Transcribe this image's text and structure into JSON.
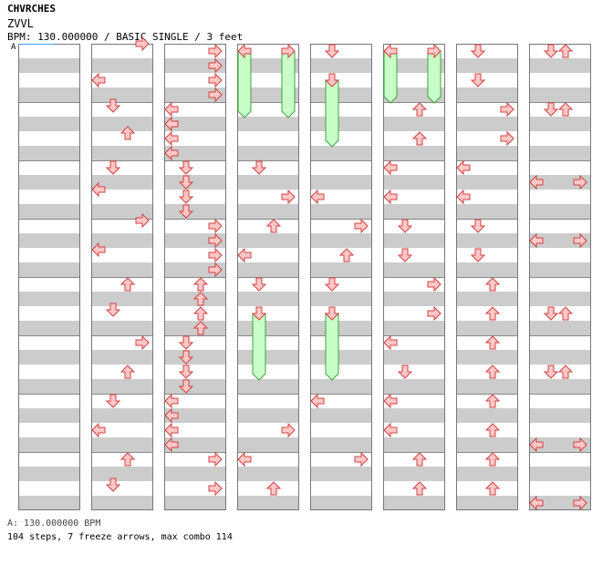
{
  "header": {
    "artist": "CHVRCHES",
    "title": "ZVVL",
    "meta": "BPM: 130.000000 / BASIC SINGLE / 3 feet"
  },
  "section_label": "A",
  "footer": {
    "bpm_line": "A: 130.000000 BPM",
    "stats_line": "104 steps, 7 freeze arrows, max combo 114"
  },
  "colors": {
    "row_shade": "#cccccc",
    "row_light": "#ffffff",
    "arrow_fill": "#ffc8c8",
    "arrow_stroke": "#d04040",
    "freeze_fill": "#c8ffc8",
    "freeze_stroke": "#40a040",
    "cursor_line": "#40a0ff"
  },
  "chart_data": {
    "type": "step_chart",
    "mode": "BASIC SINGLE",
    "difficulty_feet": 3,
    "bpm": 130,
    "lanes": [
      "left",
      "down",
      "up",
      "right"
    ],
    "columns": 8,
    "measures_per_column": 8,
    "sixteenths_per_measure": 16,
    "notes": [
      {
        "c": 1,
        "t": 0,
        "l": 3
      },
      {
        "c": 1,
        "t": 40,
        "l": 0
      },
      {
        "c": 1,
        "t": 68,
        "l": 1
      },
      {
        "c": 1,
        "t": 98,
        "l": 2
      },
      {
        "c": 1,
        "t": 136,
        "l": 1
      },
      {
        "c": 1,
        "t": 160,
        "l": 0
      },
      {
        "c": 1,
        "t": 194,
        "l": 3
      },
      {
        "c": 1,
        "t": 226,
        "l": 0
      },
      {
        "c": 1,
        "t": 264,
        "l": 2
      },
      {
        "c": 1,
        "t": 292,
        "l": 1
      },
      {
        "c": 1,
        "t": 328,
        "l": 3
      },
      {
        "c": 1,
        "t": 360,
        "l": 2
      },
      {
        "c": 1,
        "t": 392,
        "l": 1
      },
      {
        "c": 1,
        "t": 424,
        "l": 0
      },
      {
        "c": 1,
        "t": 456,
        "l": 2
      },
      {
        "c": 1,
        "t": 484,
        "l": 1
      },
      {
        "c": 2,
        "t": 8,
        "l": 3
      },
      {
        "c": 2,
        "t": 24,
        "l": 3
      },
      {
        "c": 2,
        "t": 40,
        "l": 3
      },
      {
        "c": 2,
        "t": 56,
        "l": 3
      },
      {
        "c": 2,
        "t": 72,
        "l": 0
      },
      {
        "c": 2,
        "t": 88,
        "l": 0
      },
      {
        "c": 2,
        "t": 104,
        "l": 0
      },
      {
        "c": 2,
        "t": 120,
        "l": 0
      },
      {
        "c": 2,
        "t": 136,
        "l": 1
      },
      {
        "c": 2,
        "t": 152,
        "l": 1
      },
      {
        "c": 2,
        "t": 168,
        "l": 1
      },
      {
        "c": 2,
        "t": 184,
        "l": 1
      },
      {
        "c": 2,
        "t": 200,
        "l": 3
      },
      {
        "c": 2,
        "t": 216,
        "l": 3
      },
      {
        "c": 2,
        "t": 232,
        "l": 3
      },
      {
        "c": 2,
        "t": 248,
        "l": 3
      },
      {
        "c": 2,
        "t": 264,
        "l": 2
      },
      {
        "c": 2,
        "t": 280,
        "l": 2
      },
      {
        "c": 2,
        "t": 296,
        "l": 2
      },
      {
        "c": 2,
        "t": 312,
        "l": 2
      },
      {
        "c": 2,
        "t": 328,
        "l": 1
      },
      {
        "c": 2,
        "t": 344,
        "l": 1
      },
      {
        "c": 2,
        "t": 360,
        "l": 1
      },
      {
        "c": 2,
        "t": 376,
        "l": 1
      },
      {
        "c": 2,
        "t": 392,
        "l": 0
      },
      {
        "c": 2,
        "t": 408,
        "l": 0
      },
      {
        "c": 2,
        "t": 424,
        "l": 0
      },
      {
        "c": 2,
        "t": 440,
        "l": 0
      },
      {
        "c": 2,
        "t": 456,
        "l": 3
      },
      {
        "c": 2,
        "t": 488,
        "l": 3
      },
      {
        "c": 3,
        "t": 8,
        "l": 0,
        "e": 74
      },
      {
        "c": 3,
        "t": 8,
        "l": 3,
        "e": 74
      },
      {
        "c": 3,
        "t": 136,
        "l": 1
      },
      {
        "c": 3,
        "t": 168,
        "l": 3
      },
      {
        "c": 3,
        "t": 200,
        "l": 2
      },
      {
        "c": 3,
        "t": 232,
        "l": 0
      },
      {
        "c": 3,
        "t": 264,
        "l": 1
      },
      {
        "c": 3,
        "t": 296,
        "l": 1,
        "e": 362
      },
      {
        "c": 3,
        "t": 424,
        "l": 3
      },
      {
        "c": 3,
        "t": 456,
        "l": 0
      },
      {
        "c": 3,
        "t": 488,
        "l": 2
      },
      {
        "c": 4,
        "t": 8,
        "l": 1
      },
      {
        "c": 4,
        "t": 40,
        "l": 1,
        "e": 106
      },
      {
        "c": 4,
        "t": 168,
        "l": 0
      },
      {
        "c": 4,
        "t": 200,
        "l": 3
      },
      {
        "c": 4,
        "t": 232,
        "l": 2
      },
      {
        "c": 4,
        "t": 264,
        "l": 1
      },
      {
        "c": 4,
        "t": 296,
        "l": 1,
        "e": 362
      },
      {
        "c": 4,
        "t": 392,
        "l": 0
      },
      {
        "c": 4,
        "t": 456,
        "l": 3
      },
      {
        "c": 5,
        "t": 8,
        "l": 0,
        "e": 58
      },
      {
        "c": 5,
        "t": 8,
        "l": 3,
        "e": 58
      },
      {
        "c": 5,
        "t": 72,
        "l": 2
      },
      {
        "c": 5,
        "t": 104,
        "l": 2
      },
      {
        "c": 5,
        "t": 136,
        "l": 0
      },
      {
        "c": 5,
        "t": 168,
        "l": 0
      },
      {
        "c": 5,
        "t": 200,
        "l": 1
      },
      {
        "c": 5,
        "t": 232,
        "l": 1
      },
      {
        "c": 5,
        "t": 264,
        "l": 3
      },
      {
        "c": 5,
        "t": 296,
        "l": 3
      },
      {
        "c": 5,
        "t": 328,
        "l": 0
      },
      {
        "c": 5,
        "t": 360,
        "l": 1
      },
      {
        "c": 5,
        "t": 392,
        "l": 0
      },
      {
        "c": 5,
        "t": 424,
        "l": 0
      },
      {
        "c": 5,
        "t": 456,
        "l": 2
      },
      {
        "c": 5,
        "t": 488,
        "l": 2
      },
      {
        "c": 6,
        "t": 8,
        "l": 1
      },
      {
        "c": 6,
        "t": 40,
        "l": 1
      },
      {
        "c": 6,
        "t": 72,
        "l": 3
      },
      {
        "c": 6,
        "t": 104,
        "l": 3
      },
      {
        "c": 6,
        "t": 136,
        "l": 0
      },
      {
        "c": 6,
        "t": 168,
        "l": 0
      },
      {
        "c": 6,
        "t": 200,
        "l": 1
      },
      {
        "c": 6,
        "t": 232,
        "l": 1
      },
      {
        "c": 6,
        "t": 264,
        "l": 2
      },
      {
        "c": 6,
        "t": 296,
        "l": 2
      },
      {
        "c": 6,
        "t": 328,
        "l": 2
      },
      {
        "c": 6,
        "t": 360,
        "l": 2
      },
      {
        "c": 6,
        "t": 392,
        "l": 2
      },
      {
        "c": 6,
        "t": 424,
        "l": 2
      },
      {
        "c": 6,
        "t": 456,
        "l": 2
      },
      {
        "c": 6,
        "t": 488,
        "l": 2
      },
      {
        "c": 7,
        "t": 8,
        "l": 1
      },
      {
        "c": 7,
        "t": 8,
        "l": 2
      },
      {
        "c": 7,
        "t": 72,
        "l": 1
      },
      {
        "c": 7,
        "t": 72,
        "l": 2
      },
      {
        "c": 7,
        "t": 152,
        "l": 0
      },
      {
        "c": 7,
        "t": 152,
        "l": 3
      },
      {
        "c": 7,
        "t": 216,
        "l": 0
      },
      {
        "c": 7,
        "t": 216,
        "l": 3
      },
      {
        "c": 7,
        "t": 296,
        "l": 1
      },
      {
        "c": 7,
        "t": 296,
        "l": 2
      },
      {
        "c": 7,
        "t": 360,
        "l": 1
      },
      {
        "c": 7,
        "t": 360,
        "l": 2
      },
      {
        "c": 7,
        "t": 440,
        "l": 0
      },
      {
        "c": 7,
        "t": 440,
        "l": 3
      },
      {
        "c": 7,
        "t": 504,
        "l": 0
      },
      {
        "c": 7,
        "t": 504,
        "l": 3
      }
    ]
  }
}
